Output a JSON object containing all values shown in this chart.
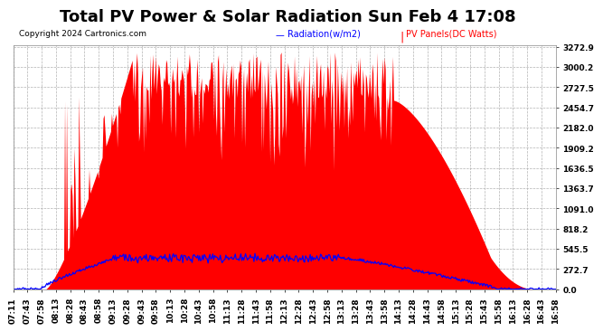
{
  "title": "Total PV Power & Solar Radiation Sun Feb 4 17:08",
  "copyright": "Copyright 2024 Cartronics.com",
  "legend_radiation": "Radiation(w/m2)",
  "legend_pv": "PV Panels(DC Watts)",
  "yticks": [
    0.0,
    272.7,
    545.5,
    818.2,
    1091.0,
    1363.7,
    1636.5,
    1909.2,
    2182.0,
    2454.7,
    2727.5,
    3000.2,
    3272.9
  ],
  "ymax": 3272.9,
  "ymin": 0.0,
  "background_color": "#ffffff",
  "grid_color": "#aaaaaa",
  "pv_color": "#ff0000",
  "radiation_color": "#0000ff",
  "title_fontsize": 13,
  "tick_fontsize": 6.5,
  "time_labels": [
    "07:11",
    "07:43",
    "07:58",
    "08:13",
    "08:28",
    "08:43",
    "08:58",
    "09:13",
    "09:28",
    "09:43",
    "09:58",
    "10:13",
    "10:28",
    "10:43",
    "10:58",
    "11:13",
    "11:28",
    "11:43",
    "11:58",
    "12:13",
    "12:28",
    "12:43",
    "12:58",
    "13:13",
    "13:28",
    "13:43",
    "13:58",
    "14:13",
    "14:28",
    "14:43",
    "14:58",
    "15:13",
    "15:28",
    "15:43",
    "15:58",
    "16:13",
    "16:28",
    "16:43",
    "16:58"
  ]
}
